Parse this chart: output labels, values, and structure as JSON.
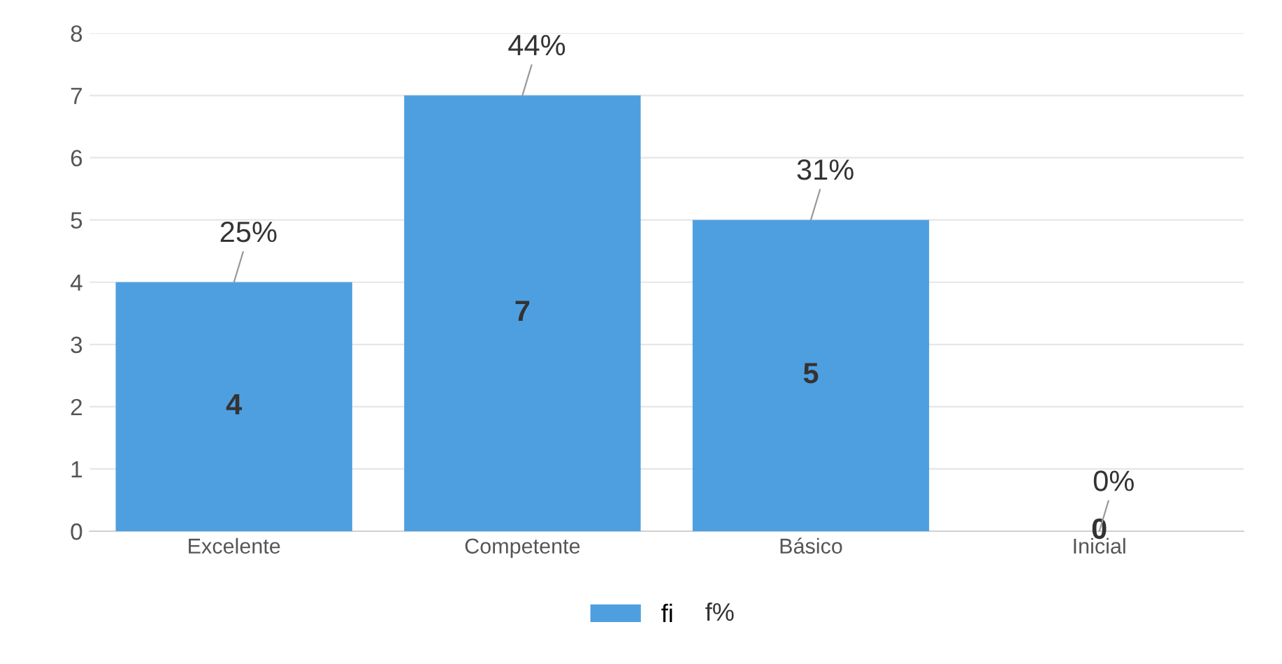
{
  "chart_data": {
    "type": "bar",
    "categories": [
      "Excelente",
      "Competente",
      "Básico",
      "Inicial"
    ],
    "series": [
      {
        "name": "fi",
        "color": "#4e9fe0",
        "values": [
          4,
          7,
          5,
          0
        ]
      }
    ],
    "data_labels": true,
    "annotations": [
      {
        "text": "25%",
        "x": "Excelente",
        "y": 4
      },
      {
        "text": "44%",
        "x": "Competente",
        "y": 7
      },
      {
        "text": "31%",
        "x": "Básico",
        "y": 5
      },
      {
        "text": "0%",
        "x": "Inicial",
        "y": 0
      },
      "f%"
    ],
    "ylim": [
      0,
      8
    ],
    "yticks": [
      0,
      1,
      2,
      3,
      4,
      5,
      6,
      7,
      8
    ],
    "grid": "y",
    "legend": "bottom"
  }
}
